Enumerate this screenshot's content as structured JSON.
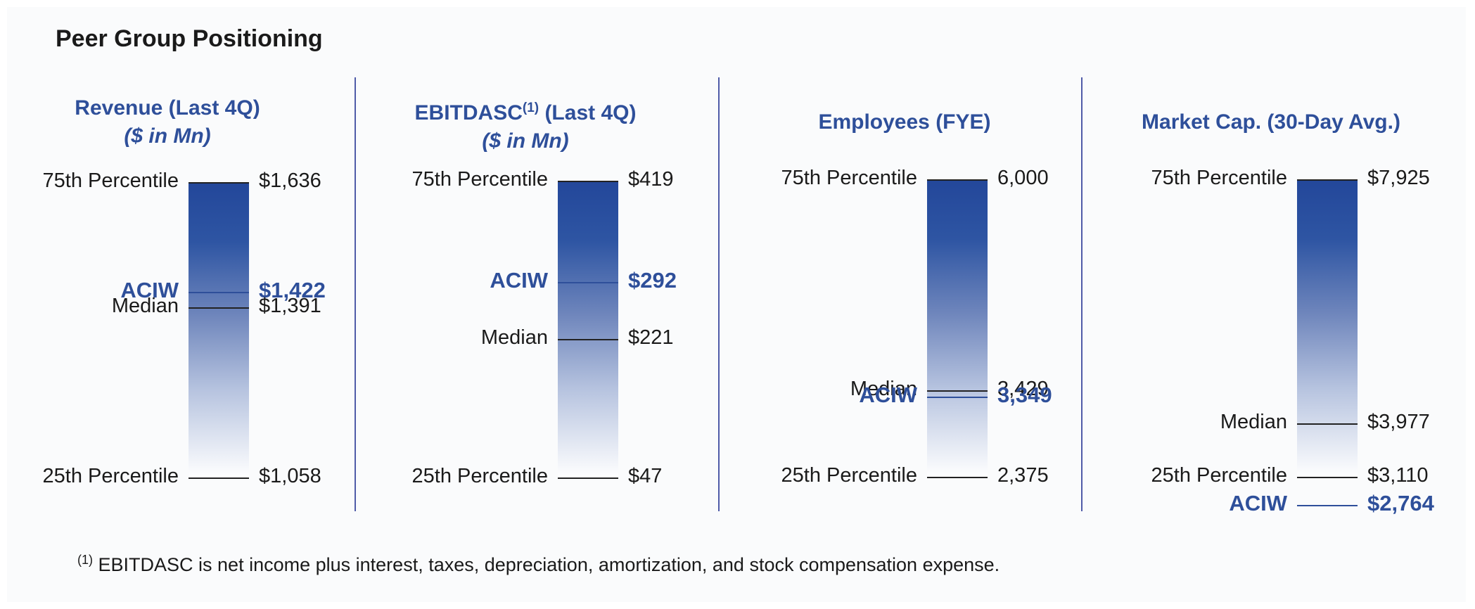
{
  "title": "Peer Group Positioning",
  "footnote": {
    "marker": "(1)",
    "text": "EBITDASC is net income plus interest, taxes, depreciation, amortization, and stock compensation expense."
  },
  "colors": {
    "accent": "#2e4f9a",
    "bar_top": "#23479a",
    "bar_bottom": "#ffffff",
    "divider": "#4f5ba8"
  },
  "chart_data": [
    {
      "type": "bar",
      "title": "Revenue (Last 4Q)",
      "title_sup": "",
      "subtitle": "($ in Mn)",
      "scale": [
        1058,
        1636
      ],
      "markers": [
        {
          "label": "75th Percentile",
          "value_text": "$1,636",
          "value": 1636,
          "kind": "p75"
        },
        {
          "label": "ACIW",
          "value_text": "$1,422",
          "value": 1422,
          "kind": "aciw"
        },
        {
          "label": "Median",
          "value_text": "$1,391",
          "value": 1391,
          "kind": "median"
        },
        {
          "label": "25th Percentile",
          "value_text": "$1,058",
          "value": 1058,
          "kind": "p25"
        }
      ]
    },
    {
      "type": "bar",
      "title": "EBITDASC",
      "title_sup": "(1)",
      "title_suffix": " (Last 4Q)",
      "subtitle": "($ in Mn)",
      "scale": [
        47,
        419
      ],
      "markers": [
        {
          "label": "75th Percentile",
          "value_text": "$419",
          "value": 419,
          "kind": "p75"
        },
        {
          "label": "ACIW",
          "value_text": "$292",
          "value": 292,
          "kind": "aciw"
        },
        {
          "label": "Median",
          "value_text": "$221",
          "value": 221,
          "kind": "median"
        },
        {
          "label": "25th Percentile",
          "value_text": "$47",
          "value": 47,
          "kind": "p25"
        }
      ]
    },
    {
      "type": "bar",
      "title": "Employees (FYE)",
      "title_sup": "",
      "subtitle": "",
      "scale": [
        2375,
        6000
      ],
      "markers": [
        {
          "label": "75th Percentile",
          "value_text": "6,000",
          "value": 6000,
          "kind": "p75"
        },
        {
          "label": "Median",
          "value_text": "3,429",
          "value": 3429,
          "kind": "median"
        },
        {
          "label": "ACIW",
          "value_text": "3,349",
          "value": 3349,
          "kind": "aciw"
        },
        {
          "label": "25th Percentile",
          "value_text": "2,375",
          "value": 2375,
          "kind": "p25"
        }
      ]
    },
    {
      "type": "bar",
      "title": "Market Cap. (30-Day Avg.)",
      "title_sup": "",
      "subtitle": "",
      "scale": [
        3110,
        7925
      ],
      "markers": [
        {
          "label": "75th Percentile",
          "value_text": "$7,925",
          "value": 7925,
          "kind": "p75"
        },
        {
          "label": "Median",
          "value_text": "$3,977",
          "value": 3977,
          "kind": "median"
        },
        {
          "label": "25th Percentile",
          "value_text": "$3,110",
          "value": 3110,
          "kind": "p25"
        },
        {
          "label": "ACIW",
          "value_text": "$2,764",
          "value": 2764,
          "kind": "aciw"
        }
      ]
    }
  ]
}
